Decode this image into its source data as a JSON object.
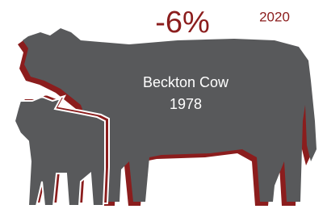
{
  "headline": {
    "change": "-6%",
    "year": "2020"
  },
  "label": {
    "name": "Beckton Cow",
    "year": "1978"
  }
}
